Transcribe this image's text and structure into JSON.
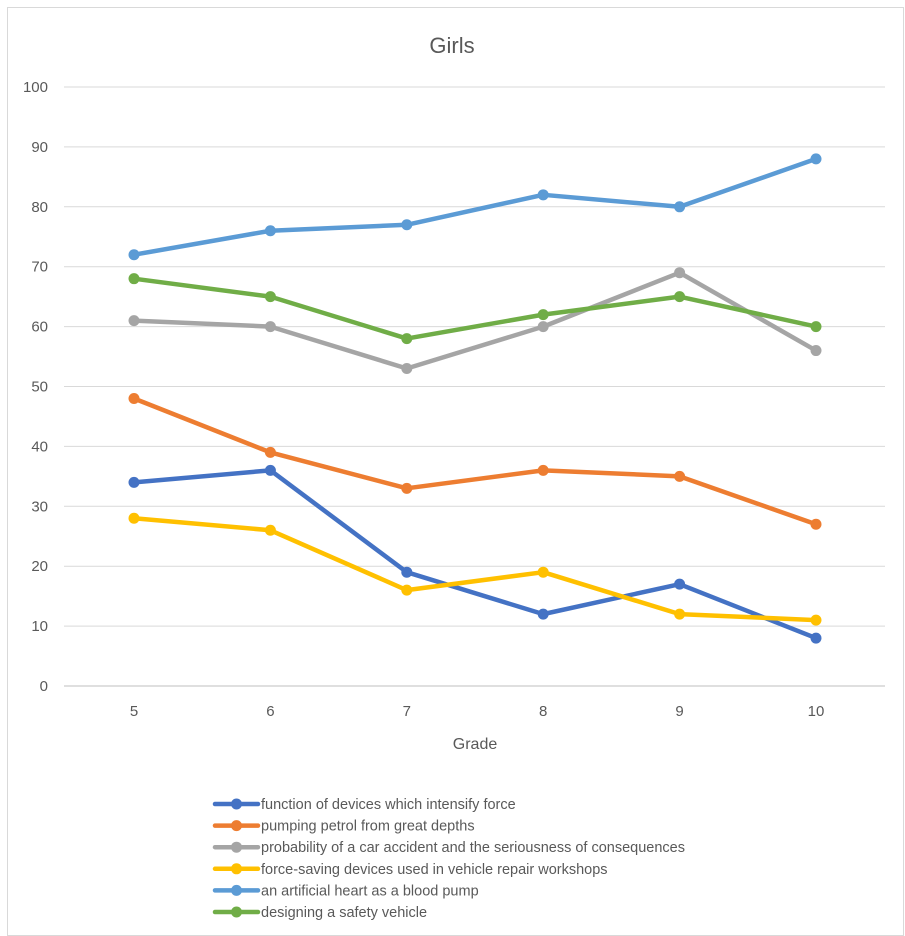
{
  "chart_data": {
    "type": "line",
    "title": "Girls",
    "xlabel": "Grade",
    "ylabel": "",
    "categories": [
      "5",
      "6",
      "7",
      "8",
      "9",
      "10"
    ],
    "ylim": [
      0,
      100
    ],
    "yticks": [
      0,
      10,
      20,
      30,
      40,
      50,
      60,
      70,
      80,
      90,
      100
    ],
    "grid": "horizontal",
    "legend_position": "bottom",
    "series": [
      {
        "name": "function of devices which intensify force",
        "color": "#4472c4",
        "values": [
          34,
          36,
          19,
          12,
          17,
          8
        ]
      },
      {
        "name": "pumping petrol from great depths",
        "color": "#ed7d31",
        "values": [
          48,
          39,
          33,
          36,
          35,
          27
        ]
      },
      {
        "name": "probability of a car accident and the seriousness of consequences",
        "color": "#a5a5a5",
        "values": [
          61,
          60,
          53,
          60,
          69,
          56
        ]
      },
      {
        "name": "force-saving devices used in vehicle repair workshops",
        "color": "#ffc000",
        "values": [
          28,
          26,
          16,
          19,
          12,
          11
        ]
      },
      {
        "name": "an artificial heart as a blood pump",
        "color": "#5b9bd5",
        "values": [
          72,
          76,
          77,
          82,
          80,
          88
        ]
      },
      {
        "name": "designing a safety vehicle",
        "color": "#70ad47",
        "values": [
          68,
          65,
          58,
          62,
          65,
          60
        ]
      }
    ]
  }
}
